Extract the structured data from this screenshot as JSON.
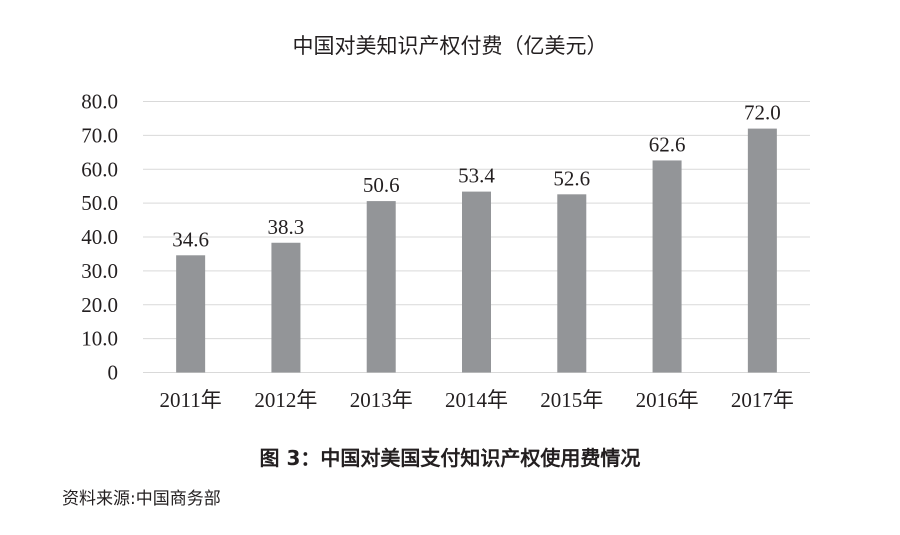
{
  "chart_data": {
    "type": "bar",
    "title": "中国对美知识产权付费（亿美元）",
    "categories": [
      "2011年",
      "2012年",
      "2013年",
      "2014年",
      "2015年",
      "2016年",
      "2017年"
    ],
    "values": [
      34.6,
      38.3,
      50.6,
      53.4,
      52.6,
      62.6,
      72.0
    ],
    "data_labels": [
      "34.6",
      "38.3",
      "50.6",
      "53.4",
      "52.6",
      "62.6",
      "72.0"
    ],
    "ylim": [
      0,
      80
    ],
    "yticks": [
      "0",
      "10.0",
      "20.0",
      "30.0",
      "40.0",
      "50.0",
      "60.0",
      "70.0",
      "80.0"
    ],
    "grid": true,
    "bar_color": "#939598",
    "grid_color": "#d9d9d9"
  },
  "caption": "图 3：中国对美国支付知识产权使用费情况",
  "source": "资料来源:中国商务部"
}
